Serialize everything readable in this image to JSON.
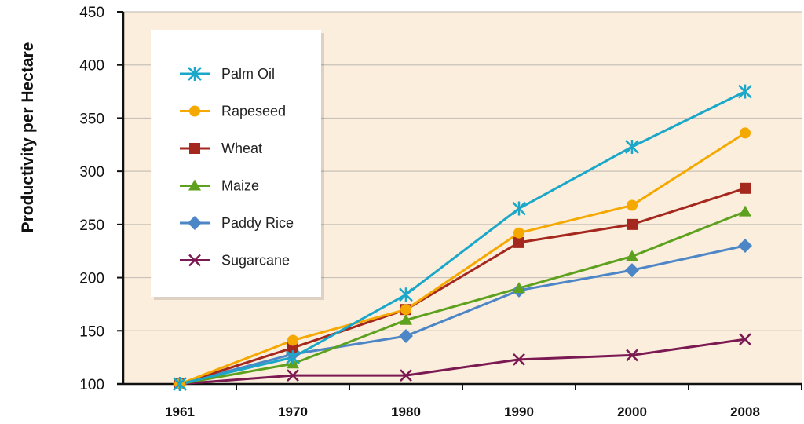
{
  "chart_data": {
    "type": "line",
    "title": "",
    "xlabel": "",
    "ylabel": "Productivity per Hectare",
    "categories": [
      "1961",
      "1970",
      "1980",
      "1990",
      "2000",
      "2008"
    ],
    "ylim": [
      100,
      450
    ],
    "yticks": [
      100,
      150,
      200,
      250,
      300,
      350,
      400,
      450
    ],
    "grid": "horizontal",
    "background": "#fbeedd",
    "legend_position": "top-left",
    "series": [
      {
        "name": "Palm Oil",
        "color": "#1aa7c9",
        "marker": "asterisk",
        "values": [
          100,
          125,
          184,
          265,
          323,
          375
        ]
      },
      {
        "name": "Rapeseed",
        "color": "#f5a800",
        "marker": "circle",
        "values": [
          100,
          141,
          170,
          242,
          268,
          336
        ]
      },
      {
        "name": "Wheat",
        "color": "#a5281e",
        "marker": "square",
        "values": [
          100,
          134,
          170,
          233,
          250,
          284
        ]
      },
      {
        "name": "Maize",
        "color": "#5ea11f",
        "marker": "triangle",
        "values": [
          100,
          119,
          160,
          190,
          220,
          262
        ]
      },
      {
        "name": "Paddy Rice",
        "color": "#4d86c6",
        "marker": "diamond",
        "values": [
          100,
          128,
          145,
          188,
          207,
          230
        ]
      },
      {
        "name": "Sugarcane",
        "color": "#7b1953",
        "marker": "x",
        "values": [
          100,
          108,
          108,
          123,
          127,
          142
        ]
      }
    ]
  }
}
